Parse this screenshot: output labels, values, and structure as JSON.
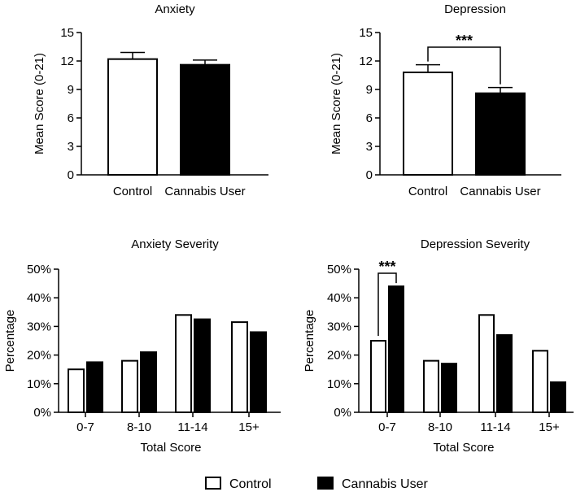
{
  "chart_data": [
    {
      "type": "bar",
      "title": "Anxiety",
      "ylabel": "Mean Score (0-21)",
      "xlabel": "",
      "categories": [
        "Control",
        "Cannabis User"
      ],
      "values": [
        12.2,
        11.6
      ],
      "errors": [
        0.7,
        0.5
      ],
      "ylim": [
        0,
        15
      ],
      "yticks": [
        "0",
        "3",
        "6",
        "9",
        "12",
        "15"
      ],
      "significance": null
    },
    {
      "type": "bar",
      "title": "Depression",
      "ylabel": "Mean Score (0-21)",
      "xlabel": "",
      "categories": [
        "Control",
        "Cannabis User"
      ],
      "values": [
        10.8,
        8.6
      ],
      "errors": [
        0.8,
        0.6
      ],
      "ylim": [
        0,
        15
      ],
      "yticks": [
        "0",
        "3",
        "6",
        "9",
        "12",
        "15"
      ],
      "significance": "***"
    },
    {
      "type": "bar",
      "title": "Anxiety Severity",
      "ylabel": "Percentage",
      "xlabel": "Total Score",
      "categories": [
        "0-7",
        "8-10",
        "11-14",
        "15+"
      ],
      "series": [
        {
          "name": "Control",
          "values": [
            15,
            18,
            34,
            31.5
          ]
        },
        {
          "name": "Cannabis User",
          "values": [
            17.5,
            21,
            32.5,
            28
          ]
        }
      ],
      "ylim": [
        0,
        50
      ],
      "yticks": [
        "0%",
        "10%",
        "20%",
        "30%",
        "40%",
        "50%"
      ],
      "significance": null
    },
    {
      "type": "bar",
      "title": "Depression Severity",
      "ylabel": "Percentage",
      "xlabel": "Total Score",
      "categories": [
        "0-7",
        "8-10",
        "11-14",
        "15+"
      ],
      "series": [
        {
          "name": "Control",
          "values": [
            25,
            18,
            34,
            21.5
          ]
        },
        {
          "name": "Cannabis User",
          "values": [
            44,
            17,
            27,
            10.5
          ]
        }
      ],
      "ylim": [
        0,
        50
      ],
      "yticks": [
        "0%",
        "10%",
        "20%",
        "30%",
        "40%",
        "50%"
      ],
      "significance": "***"
    }
  ],
  "legend": {
    "placement": "bottom",
    "items": [
      {
        "label": "Control",
        "fill": "#ffffff"
      },
      {
        "label": "Cannabis User",
        "fill": "#000000"
      }
    ]
  },
  "colors": {
    "control": "#ffffff",
    "cannabis": "#000000",
    "stroke": "#000000"
  }
}
